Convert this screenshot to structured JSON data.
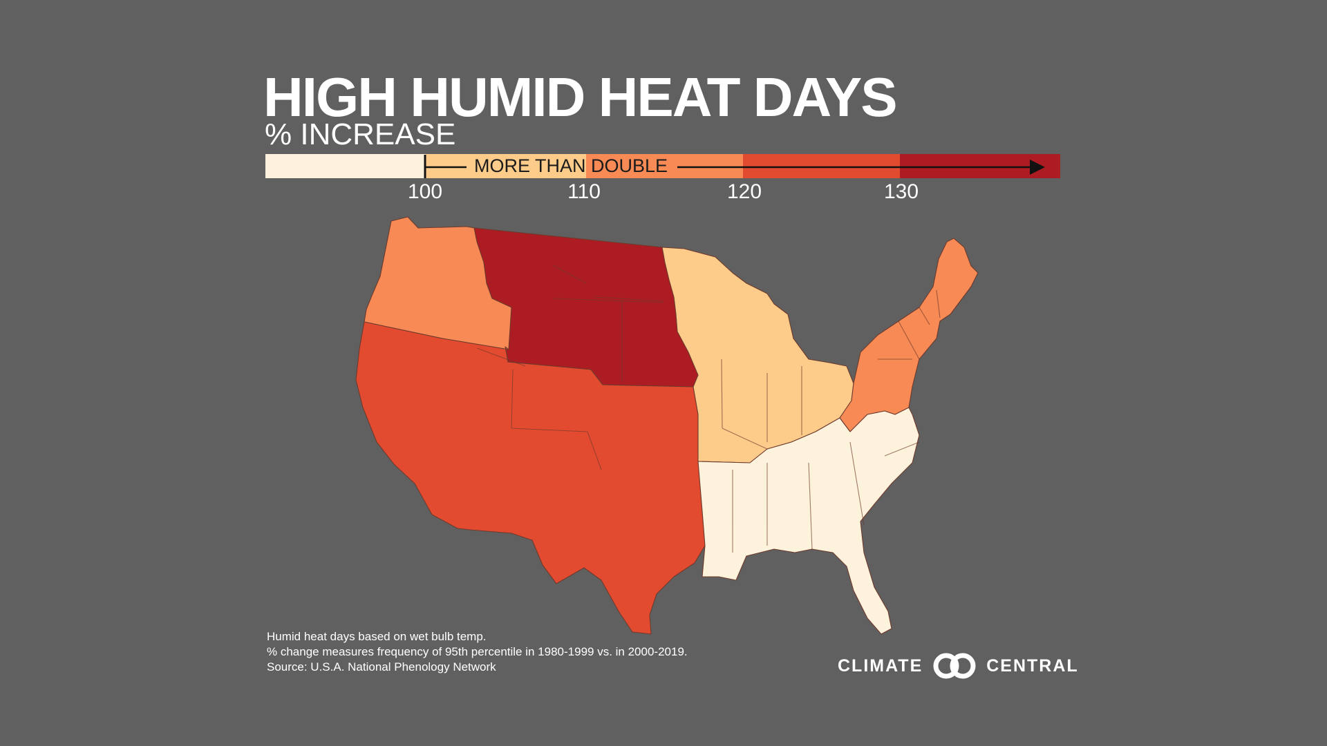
{
  "title": "HIGH HUMID HEAT DAYS",
  "subtitle": "% INCREASE",
  "legend": {
    "label": "MORE THAN DOUBLE",
    "ticks": [
      "100",
      "110",
      "120",
      "130"
    ],
    "bins": [
      {
        "range": "below 100",
        "color": "#fdf2dc"
      },
      {
        "range": "100-110",
        "color": "#fdcc8a"
      },
      {
        "range": "110-120",
        "color": "#f78a55"
      },
      {
        "range": "120-130",
        "color": "#e24b30"
      },
      {
        "range": "130+",
        "color": "#ad1c22"
      }
    ]
  },
  "regions": [
    {
      "name": "Pacific Northwest & Northeast",
      "color": "#f78a55"
    },
    {
      "name": "Southwest & Southern Plains",
      "color": "#e24b30"
    },
    {
      "name": "Northern Plains",
      "color": "#ad1c22"
    },
    {
      "name": "Upper Midwest & Ohio Valley",
      "color": "#fdcc8a"
    },
    {
      "name": "Southeast",
      "color": "#fdf2dc"
    }
  ],
  "notes": [
    "Humid heat days based on wet bulb temp.",
    "% change measures frequency of 95th percentile in 1980-1999 vs. in 2000-2019.",
    "Source: U.S.A. National Phenology Network"
  ],
  "logo": {
    "left": "CLIMATE",
    "right": "CENTRAL"
  }
}
